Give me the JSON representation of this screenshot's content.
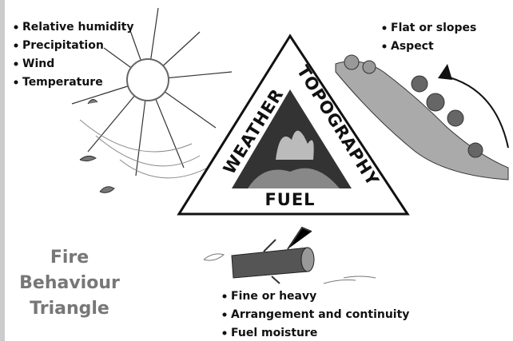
{
  "weather": {
    "label": "WEATHER",
    "items": [
      "Relative humidity",
      "Precipitation",
      "Wind",
      "Temperature"
    ]
  },
  "topography": {
    "label": "TOPOGRAPHY",
    "items": [
      "Flat or slopes",
      "Aspect"
    ]
  },
  "fuel": {
    "label": "FUEL",
    "items": [
      "Fine or heavy",
      "Arrangement and continuity",
      "Fuel moisture"
    ]
  },
  "title": [
    "Fire",
    "Behaviour",
    "Triangle"
  ]
}
